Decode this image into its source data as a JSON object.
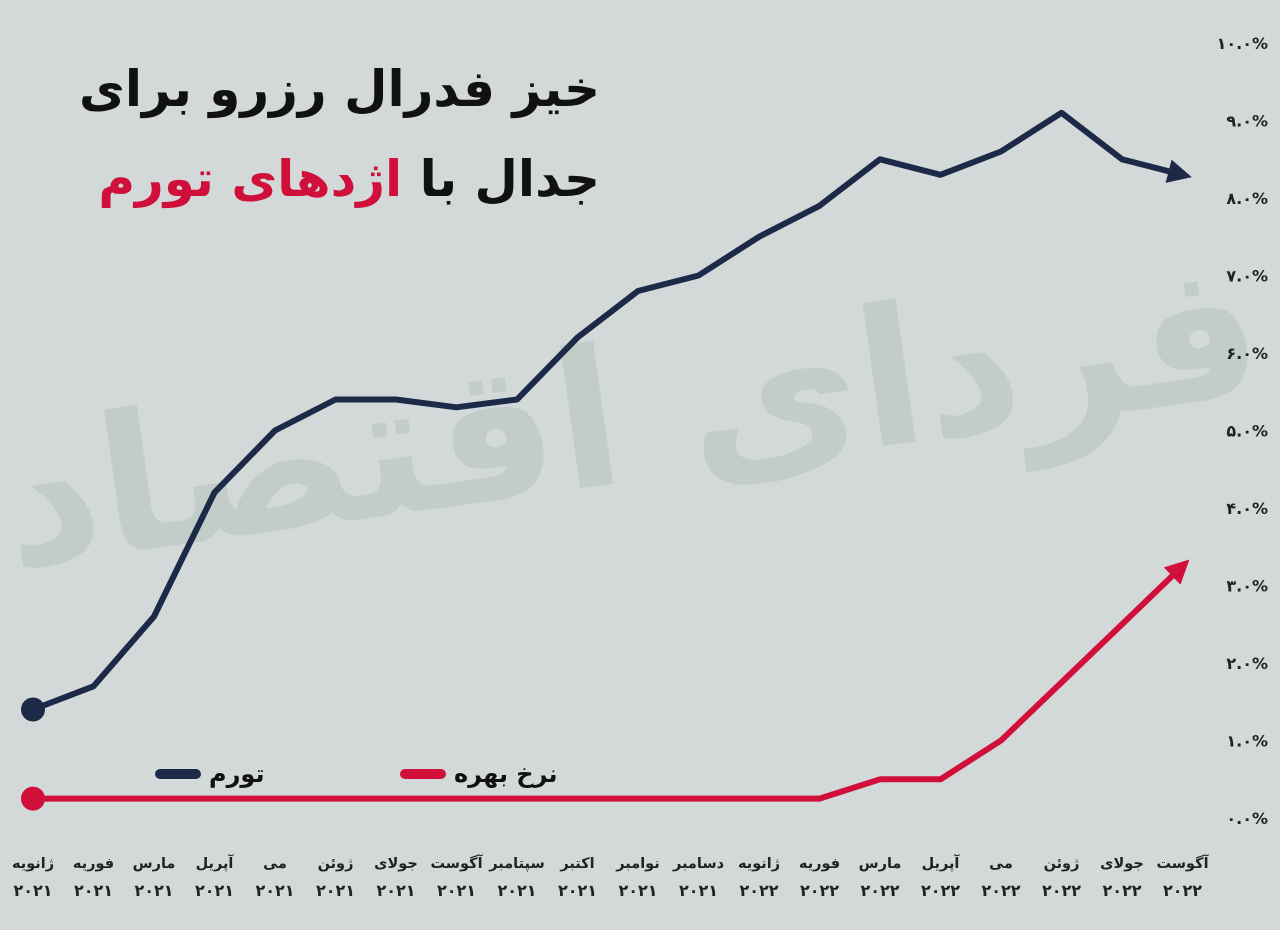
{
  "title": {
    "line1": "خیز فدرال رزرو برای",
    "line2_prefix": "جدال با",
    "line2_highlight": "اژدهای تورم"
  },
  "colors": {
    "inflation": "#1c2a47",
    "rate": "#d0103a",
    "background": "#d3d9d9"
  },
  "legend": {
    "inflation": "تورم",
    "rate": "نرخ بهره"
  },
  "chart_data": {
    "type": "line",
    "categories": [
      {
        "month": "ژانویه",
        "year": "۲۰۲۱"
      },
      {
        "month": "فوریه",
        "year": "۲۰۲۱"
      },
      {
        "month": "مارس",
        "year": "۲۰۲۱"
      },
      {
        "month": "آپریل",
        "year": "۲۰۲۱"
      },
      {
        "month": "می",
        "year": "۲۰۲۱"
      },
      {
        "month": "ژوئن",
        "year": "۲۰۲۱"
      },
      {
        "month": "جولای",
        "year": "۲۰۲۱"
      },
      {
        "month": "آگوست",
        "year": "۲۰۲۱"
      },
      {
        "month": "سپتامبر",
        "year": "۲۰۲۱"
      },
      {
        "month": "اکتبر",
        "year": "۲۰۲۱"
      },
      {
        "month": "نوامبر",
        "year": "۲۰۲۱"
      },
      {
        "month": "دسامبر",
        "year": "۲۰۲۱"
      },
      {
        "month": "ژانویه",
        "year": "۲۰۲۲"
      },
      {
        "month": "فوریه",
        "year": "۲۰۲۲"
      },
      {
        "month": "مارس",
        "year": "۲۰۲۲"
      },
      {
        "month": "آپریل",
        "year": "۲۰۲۲"
      },
      {
        "month": "می",
        "year": "۲۰۲۲"
      },
      {
        "month": "ژوئن",
        "year": "۲۰۲۲"
      },
      {
        "month": "جولای",
        "year": "۲۰۲۲"
      },
      {
        "month": "آگوست",
        "year": "۲۰۲۲"
      }
    ],
    "series": [
      {
        "name": "تورم",
        "values": [
          1.4,
          1.7,
          2.6,
          4.2,
          5.0,
          5.4,
          5.4,
          5.3,
          5.4,
          6.2,
          6.8,
          7.0,
          7.5,
          7.9,
          8.5,
          8.3,
          8.6,
          9.1,
          8.5,
          8.3
        ]
      },
      {
        "name": "نرخ بهره",
        "values": [
          0.25,
          0.25,
          0.25,
          0.25,
          0.25,
          0.25,
          0.25,
          0.25,
          0.25,
          0.25,
          0.25,
          0.25,
          0.25,
          0.25,
          0.5,
          0.5,
          1.0,
          1.75,
          2.5,
          3.25
        ]
      }
    ],
    "yticks": [
      "۰.۰%",
      "۱.۰%",
      "۲.۰%",
      "۳.۰%",
      "۴.۰%",
      "۵.۰%",
      "۶.۰%",
      "۷.۰%",
      "۸.۰%",
      "۹.۰%",
      "۱۰.۰%"
    ],
    "ylim": [
      0,
      10
    ],
    "grid": false,
    "legend_position": "bottom-left"
  },
  "watermark": "فردای اقتصاد"
}
